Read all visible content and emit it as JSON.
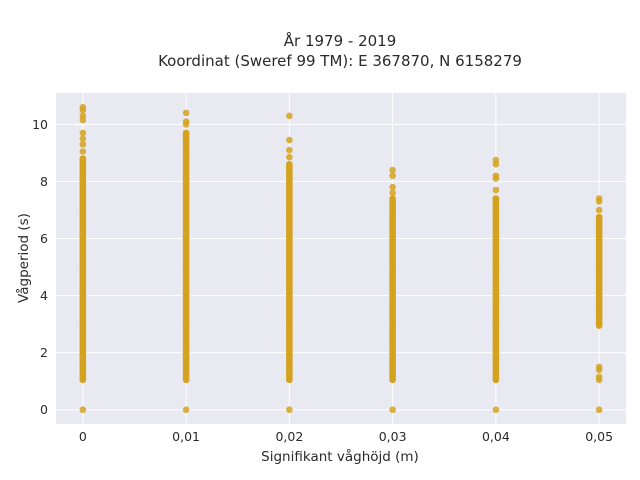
{
  "chart_data": {
    "type": "scatter",
    "title_lines": [
      "År 1979 - 2019",
      "Koordinat (Sweref 99 TM): E 367870, N 6158279"
    ],
    "xlabel": "Signifikant våghöjd (m)",
    "ylabel": "Vågperiod (s)",
    "x_ticks": [
      {
        "value": 0,
        "label": "0"
      },
      {
        "value": 0.01,
        "label": "0,01"
      },
      {
        "value": 0.02,
        "label": "0,02"
      },
      {
        "value": 0.03,
        "label": "0,03"
      },
      {
        "value": 0.04,
        "label": "0,04"
      },
      {
        "value": 0.05,
        "label": "0,05"
      }
    ],
    "y_ticks": [
      0,
      2,
      4,
      6,
      8,
      10
    ],
    "xlim": [
      -0.0026,
      0.0526
    ],
    "ylim": [
      -0.5,
      11.1
    ],
    "grid": true,
    "colors": {
      "marker": "#d4a21f",
      "plot_bg": "#e9e9f2",
      "grid": "#ffffff"
    },
    "series": [
      {
        "points": [
          {
            "x": 0,
            "y": 0
          },
          {
            "x": 0,
            "y": 1.05
          },
          {
            "x": 0,
            "y": 1.5
          },
          {
            "x": 0,
            "y": 2.0
          },
          {
            "x": 0,
            "y": 3.0
          },
          {
            "x": 0,
            "y": 4.0
          },
          {
            "x": 0,
            "y": 5.0
          },
          {
            "x": 0,
            "y": 6.0
          },
          {
            "x": 0,
            "y": 7.0
          },
          {
            "x": 0,
            "y": 8.0
          },
          {
            "x": 0,
            "y": 8.8
          },
          {
            "x": 0,
            "y": 9.05
          },
          {
            "x": 0,
            "y": 9.3
          },
          {
            "x": 0,
            "y": 9.5
          },
          {
            "x": 0,
            "y": 9.7
          },
          {
            "x": 0,
            "y": 10.15
          },
          {
            "x": 0,
            "y": 10.3
          },
          {
            "x": 0,
            "y": 10.5
          },
          {
            "x": 0,
            "y": 10.6
          },
          {
            "x": 0.01,
            "y": 0
          },
          {
            "x": 0.01,
            "y": 1.05
          },
          {
            "x": 0.01,
            "y": 2.0
          },
          {
            "x": 0.01,
            "y": 3.0
          },
          {
            "x": 0.01,
            "y": 4.0
          },
          {
            "x": 0.01,
            "y": 5.0
          },
          {
            "x": 0.01,
            "y": 6.0
          },
          {
            "x": 0.01,
            "y": 7.0
          },
          {
            "x": 0.01,
            "y": 8.0
          },
          {
            "x": 0.01,
            "y": 9.0
          },
          {
            "x": 0.01,
            "y": 9.5
          },
          {
            "x": 0.01,
            "y": 9.7
          },
          {
            "x": 0.01,
            "y": 10.0
          },
          {
            "x": 0.01,
            "y": 10.1
          },
          {
            "x": 0.01,
            "y": 10.4
          },
          {
            "x": 0.02,
            "y": 0
          },
          {
            "x": 0.02,
            "y": 1.05
          },
          {
            "x": 0.02,
            "y": 2.0
          },
          {
            "x": 0.02,
            "y": 3.0
          },
          {
            "x": 0.02,
            "y": 4.0
          },
          {
            "x": 0.02,
            "y": 5.0
          },
          {
            "x": 0.02,
            "y": 6.0
          },
          {
            "x": 0.02,
            "y": 7.0
          },
          {
            "x": 0.02,
            "y": 8.0
          },
          {
            "x": 0.02,
            "y": 8.6
          },
          {
            "x": 0.02,
            "y": 8.85
          },
          {
            "x": 0.02,
            "y": 9.1
          },
          {
            "x": 0.02,
            "y": 9.45
          },
          {
            "x": 0.02,
            "y": 10.3
          },
          {
            "x": 0.03,
            "y": 0
          },
          {
            "x": 0.03,
            "y": 1.05
          },
          {
            "x": 0.03,
            "y": 2.0
          },
          {
            "x": 0.03,
            "y": 3.0
          },
          {
            "x": 0.03,
            "y": 4.0
          },
          {
            "x": 0.03,
            "y": 5.0
          },
          {
            "x": 0.03,
            "y": 6.0
          },
          {
            "x": 0.03,
            "y": 7.0
          },
          {
            "x": 0.03,
            "y": 7.3
          },
          {
            "x": 0.03,
            "y": 7.6
          },
          {
            "x": 0.03,
            "y": 7.8
          },
          {
            "x": 0.03,
            "y": 8.2
          },
          {
            "x": 0.03,
            "y": 8.4
          },
          {
            "x": 0.04,
            "y": 0
          },
          {
            "x": 0.04,
            "y": 1.05
          },
          {
            "x": 0.04,
            "y": 2.0
          },
          {
            "x": 0.04,
            "y": 3.0
          },
          {
            "x": 0.04,
            "y": 4.0
          },
          {
            "x": 0.04,
            "y": 5.0
          },
          {
            "x": 0.04,
            "y": 6.0
          },
          {
            "x": 0.04,
            "y": 7.0
          },
          {
            "x": 0.04,
            "y": 7.4
          },
          {
            "x": 0.04,
            "y": 7.7
          },
          {
            "x": 0.04,
            "y": 8.1
          },
          {
            "x": 0.04,
            "y": 8.2
          },
          {
            "x": 0.04,
            "y": 8.6
          },
          {
            "x": 0.04,
            "y": 8.75
          },
          {
            "x": 0.05,
            "y": 0
          },
          {
            "x": 0.05,
            "y": 1.05
          },
          {
            "x": 0.05,
            "y": 1.15
          },
          {
            "x": 0.05,
            "y": 1.4
          },
          {
            "x": 0.05,
            "y": 1.5
          },
          {
            "x": 0.05,
            "y": 2.95
          },
          {
            "x": 0.05,
            "y": 3.5
          },
          {
            "x": 0.05,
            "y": 4.0
          },
          {
            "x": 0.05,
            "y": 5.0
          },
          {
            "x": 0.05,
            "y": 6.0
          },
          {
            "x": 0.05,
            "y": 6.5
          },
          {
            "x": 0.05,
            "y": 6.75
          },
          {
            "x": 0.05,
            "y": 7.0
          },
          {
            "x": 0.05,
            "y": 7.3
          },
          {
            "x": 0.05,
            "y": 7.4
          }
        ],
        "dense_ranges": [
          {
            "x": 0,
            "y_from": 1.05,
            "y_to": 8.8
          },
          {
            "x": 0.01,
            "y_from": 1.05,
            "y_to": 9.7
          },
          {
            "x": 0.02,
            "y_from": 1.05,
            "y_to": 8.6
          },
          {
            "x": 0.03,
            "y_from": 1.05,
            "y_to": 7.4
          },
          {
            "x": 0.04,
            "y_from": 1.05,
            "y_to": 7.4
          },
          {
            "x": 0.05,
            "y_from": 2.95,
            "y_to": 6.75
          }
        ]
      }
    ]
  }
}
